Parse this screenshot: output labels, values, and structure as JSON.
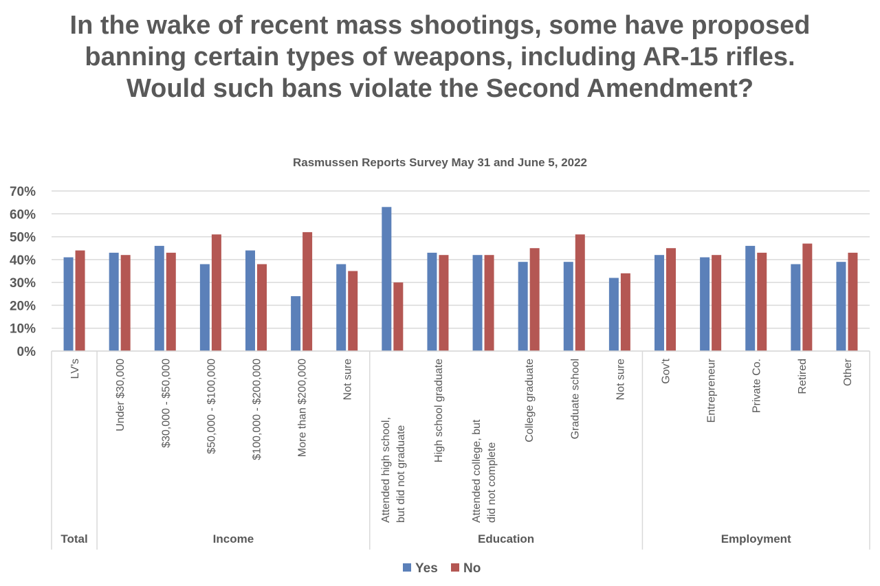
{
  "chart_data": {
    "type": "bar",
    "title": "In the wake of recent mass shootings, some have proposed banning certain types of weapons, including AR-15 rifles. Would such bans violate the Second Amendment?",
    "subtitle": "Rasmussen Reports Survey  May 31 and June 5, 2022",
    "ylim": [
      0,
      70
    ],
    "yticks": [
      "0%",
      "10%",
      "20%",
      "30%",
      "40%",
      "50%",
      "60%",
      "70%"
    ],
    "grid": true,
    "legend_position": "bottom",
    "groups": [
      {
        "name": "Total",
        "categories": [
          "LV's"
        ]
      },
      {
        "name": "Income",
        "categories": [
          "Under $30,000",
          "$30,000 - $50,000",
          "$50,000 - $100,000",
          "$100,000 - $200,000",
          "More than $200,000",
          "Not sure"
        ]
      },
      {
        "name": "Education",
        "categories": [
          "Attended high school, but did not graduate",
          "High school graduate",
          "Attended college, but did not complete",
          "College graduate",
          "Graduate school",
          "Not sure"
        ]
      },
      {
        "name": "Employment",
        "categories": [
          "Gov't",
          "Entrepreneur",
          "Private Co.",
          "Retired",
          "Other"
        ]
      }
    ],
    "series": [
      {
        "name": "Yes",
        "color": "#5b80b9",
        "values": [
          41,
          43,
          46,
          38,
          44,
          24,
          38,
          63,
          43,
          42,
          39,
          39,
          32,
          42,
          41,
          46,
          38,
          39
        ]
      },
      {
        "name": "No",
        "color": "#b45753",
        "values": [
          44,
          42,
          43,
          51,
          38,
          52,
          35,
          30,
          42,
          42,
          45,
          51,
          34,
          45,
          42,
          43,
          47,
          43
        ]
      }
    ]
  }
}
